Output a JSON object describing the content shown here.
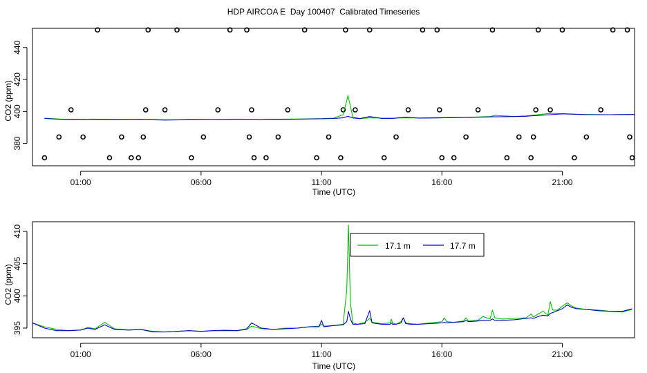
{
  "title": "HDP AIRCOA E  Day 100407  Calibrated Timeseries",
  "colors": {
    "series_a": "#00c000",
    "series_b": "#0000cc",
    "axis": "#000000"
  },
  "chart_data": [
    {
      "type": "line",
      "panel": "top",
      "xlabel": "Time (UTC)",
      "ylabel": "CO2 (ppm)",
      "x_unit": "hours UTC",
      "xlim": [
        -1.0,
        24.0
      ],
      "ylim": [
        366,
        452
      ],
      "x_ticks": [
        1,
        6,
        11,
        16,
        21
      ],
      "x_tick_labels": [
        "01:00",
        "06:00",
        "11:00",
        "16:00",
        "21:00"
      ],
      "y_ticks": [
        380,
        400,
        420,
        440
      ],
      "y_tick_labels": [
        "380",
        "400",
        "420",
        "440"
      ],
      "grid": false,
      "series": [
        {
          "color": "#00c000",
          "x": [
            -0.5,
            0.5,
            1.5,
            2.5,
            3.5,
            4.5,
            5.5,
            6.5,
            7.5,
            8.5,
            9.5,
            10.5,
            11.0,
            11.5,
            11.9,
            12.1,
            12.3,
            12.6,
            13.0,
            13.5,
            14.0,
            14.5,
            15.0,
            15.5,
            16.0,
            17.0,
            18.0,
            18.2,
            19.0,
            19.5,
            20.0,
            20.5,
            21.0,
            21.5,
            22.0,
            23.0,
            24.0
          ],
          "y": [
            395.8,
            394.9,
            395.2,
            394.9,
            395.0,
            394.7,
            394.9,
            395.0,
            395.1,
            395.0,
            395.2,
            395.4,
            395.5,
            395.8,
            398.0,
            410.0,
            396.5,
            395.5,
            396.0,
            395.8,
            395.8,
            396.0,
            395.9,
            396.0,
            396.1,
            396.3,
            396.8,
            397.5,
            396.9,
            397.2,
            398.0,
            398.8,
            398.6,
            398.3,
            398.1,
            398.0,
            398.2
          ]
        },
        {
          "color": "#0000cc",
          "x": [
            -0.5,
            0.5,
            1.5,
            2.5,
            3.5,
            4.5,
            5.5,
            6.5,
            7.5,
            8.5,
            9.5,
            10.5,
            11.0,
            11.5,
            11.9,
            12.1,
            12.3,
            12.6,
            13.0,
            13.5,
            14.0,
            14.5,
            15.0,
            15.5,
            16.0,
            17.0,
            18.0,
            19.0,
            19.5,
            20.0,
            20.5,
            21.0,
            21.5,
            22.0,
            23.0,
            24.0
          ],
          "y": [
            395.6,
            394.8,
            395.0,
            394.8,
            394.9,
            394.6,
            394.8,
            394.9,
            395.0,
            394.9,
            395.0,
            395.3,
            395.4,
            395.6,
            396.0,
            397.0,
            395.9,
            395.5,
            396.8,
            395.6,
            395.7,
            396.4,
            395.8,
            395.9,
            396.0,
            396.2,
            396.6,
            396.8,
            397.0,
            397.5,
            398.0,
            398.5,
            398.3,
            398.0,
            398.0,
            398.1
          ]
        }
      ],
      "calibration_points": {
        "x": [
          -0.5,
          0.1,
          0.6,
          1.1,
          1.7,
          2.2,
          2.7,
          3.1,
          3.4,
          3.6,
          3.7,
          3.8,
          4.5,
          5.0,
          5.6,
          6.1,
          6.7,
          7.2,
          7.9,
          8.0,
          8.1,
          8.2,
          8.7,
          9.2,
          9.6,
          10.3,
          10.8,
          11.3,
          11.8,
          11.9,
          12.0,
          12.4,
          13.0,
          13.6,
          14.1,
          14.6,
          15.2,
          15.8,
          15.9,
          16.0,
          16.5,
          17.0,
          17.5,
          18.1,
          18.7,
          19.2,
          19.7,
          19.8,
          19.9,
          20.0,
          20.5,
          21.0,
          21.5,
          22.0,
          22.6,
          23.1,
          23.7,
          23.8,
          23.9
        ],
        "y": [
          371,
          384,
          401,
          384,
          451,
          371,
          384,
          371,
          371,
          384,
          401,
          451,
          401,
          451,
          371,
          384,
          401,
          451,
          451,
          384,
          401,
          371,
          371,
          384,
          401,
          451,
          371,
          384,
          371,
          401,
          451,
          401,
          451,
          371,
          384,
          401,
          451,
          451,
          401,
          371,
          371,
          384,
          401,
          451,
          371,
          384,
          371,
          384,
          401,
          451,
          401,
          451,
          371,
          384,
          401,
          451,
          451,
          384,
          371
        ]
      }
    },
    {
      "type": "line",
      "panel": "bottom",
      "xlabel": "Time (UTC)",
      "ylabel": "CO2 (ppm)",
      "x_unit": "hours UTC",
      "xlim": [
        -1.0,
        24.0
      ],
      "ylim": [
        393.5,
        411.5
      ],
      "x_ticks": [
        1,
        6,
        11,
        16,
        21
      ],
      "x_tick_labels": [
        "01:00",
        "06:00",
        "11:00",
        "16:00",
        "21:00"
      ],
      "y_ticks": [
        395,
        400,
        405,
        410
      ],
      "y_tick_labels": [
        "395",
        "400",
        "405",
        "410"
      ],
      "grid": false,
      "legend_position": "top-center",
      "series": [
        {
          "name": "17.1 m",
          "color": "#00c000",
          "x": [
            -1.0,
            -0.5,
            0.0,
            0.5,
            1.0,
            1.3,
            1.6,
            2.0,
            2.4,
            3.0,
            3.5,
            4.0,
            4.5,
            5.0,
            5.5,
            6.0,
            6.5,
            7.0,
            7.5,
            7.9,
            8.1,
            8.5,
            9.0,
            9.5,
            10.0,
            10.5,
            10.9,
            11.0,
            11.1,
            11.5,
            11.9,
            12.05,
            12.12,
            12.2,
            12.3,
            12.5,
            12.8,
            13.0,
            13.1,
            13.5,
            13.85,
            13.9,
            13.95,
            14.1,
            14.3,
            14.4,
            14.5,
            14.7,
            15.0,
            15.5,
            16.0,
            16.1,
            16.2,
            16.5,
            16.9,
            17.0,
            17.1,
            17.5,
            17.7,
            18.0,
            18.1,
            18.2,
            18.5,
            19.0,
            19.5,
            19.7,
            19.8,
            20.0,
            20.2,
            20.4,
            20.5,
            20.6,
            20.8,
            21.0,
            21.2,
            21.4,
            21.6,
            22.0,
            22.5,
            23.0,
            23.5,
            23.9
          ],
          "y": [
            395.8,
            395.2,
            394.8,
            394.6,
            394.7,
            395.1,
            394.9,
            395.9,
            394.9,
            394.7,
            394.8,
            394.5,
            394.4,
            394.5,
            394.6,
            394.5,
            394.6,
            394.7,
            394.6,
            394.8,
            395.3,
            394.9,
            394.8,
            395.0,
            395.0,
            395.2,
            395.3,
            395.6,
            395.3,
            395.4,
            395.6,
            401.0,
            411.0,
            399.0,
            395.8,
            395.6,
            395.9,
            396.5,
            395.9,
            395.7,
            395.8,
            396.4,
            395.8,
            395.6,
            396.0,
            396.6,
            395.8,
            395.7,
            395.6,
            395.8,
            396.0,
            396.6,
            396.0,
            395.9,
            396.1,
            396.6,
            396.1,
            396.2,
            396.8,
            396.4,
            397.8,
            396.6,
            396.4,
            396.5,
            396.6,
            397.2,
            396.7,
            397.2,
            397.6,
            397.0,
            399.1,
            397.8,
            397.8,
            398.4,
            398.9,
            398.4,
            398.1,
            397.9,
            397.8,
            397.6,
            397.5,
            397.9
          ]
        },
        {
          "name": "17.7 m",
          "color": "#0000cc",
          "x": [
            -1.0,
            -0.5,
            0.0,
            0.5,
            1.0,
            1.3,
            1.6,
            2.0,
            2.4,
            3.0,
            3.5,
            4.0,
            4.5,
            5.0,
            5.5,
            6.0,
            6.5,
            7.0,
            7.5,
            7.9,
            8.1,
            8.5,
            9.0,
            9.5,
            10.0,
            10.5,
            10.9,
            11.0,
            11.1,
            11.5,
            11.9,
            12.05,
            12.12,
            12.2,
            12.3,
            12.5,
            12.8,
            13.0,
            13.1,
            13.5,
            13.85,
            13.9,
            13.95,
            14.1,
            14.3,
            14.4,
            14.5,
            14.7,
            15.0,
            15.5,
            16.0,
            16.1,
            16.2,
            16.5,
            16.9,
            17.0,
            17.1,
            17.5,
            17.7,
            18.0,
            18.1,
            18.2,
            18.5,
            19.0,
            19.5,
            19.7,
            19.8,
            20.0,
            20.2,
            20.4,
            20.5,
            20.6,
            20.8,
            21.0,
            21.2,
            21.4,
            21.6,
            22.0,
            22.5,
            23.0,
            23.5,
            23.9
          ],
          "y": [
            395.8,
            395.0,
            394.6,
            394.6,
            394.7,
            395.0,
            394.8,
            395.5,
            394.8,
            394.7,
            394.8,
            394.4,
            394.4,
            394.5,
            394.6,
            394.5,
            394.6,
            394.6,
            394.6,
            394.9,
            395.8,
            395.0,
            394.8,
            394.9,
            395.0,
            395.2,
            395.2,
            396.2,
            395.2,
            395.4,
            395.5,
            396.0,
            397.6,
            396.4,
            395.6,
            395.6,
            395.7,
            397.7,
            395.8,
            395.6,
            395.6,
            395.8,
            395.6,
            395.6,
            395.8,
            396.6,
            395.7,
            395.6,
            395.6,
            395.7,
            395.8,
            395.9,
            395.8,
            395.9,
            396.0,
            396.2,
            396.0,
            396.1,
            396.2,
            396.2,
            396.4,
            396.2,
            396.2,
            396.3,
            396.5,
            396.6,
            396.5,
            396.8,
            397.0,
            396.9,
            397.3,
            397.4,
            397.7,
            398.0,
            398.6,
            398.2,
            398.0,
            397.9,
            397.7,
            397.6,
            397.6,
            398.0
          ]
        }
      ]
    }
  ]
}
